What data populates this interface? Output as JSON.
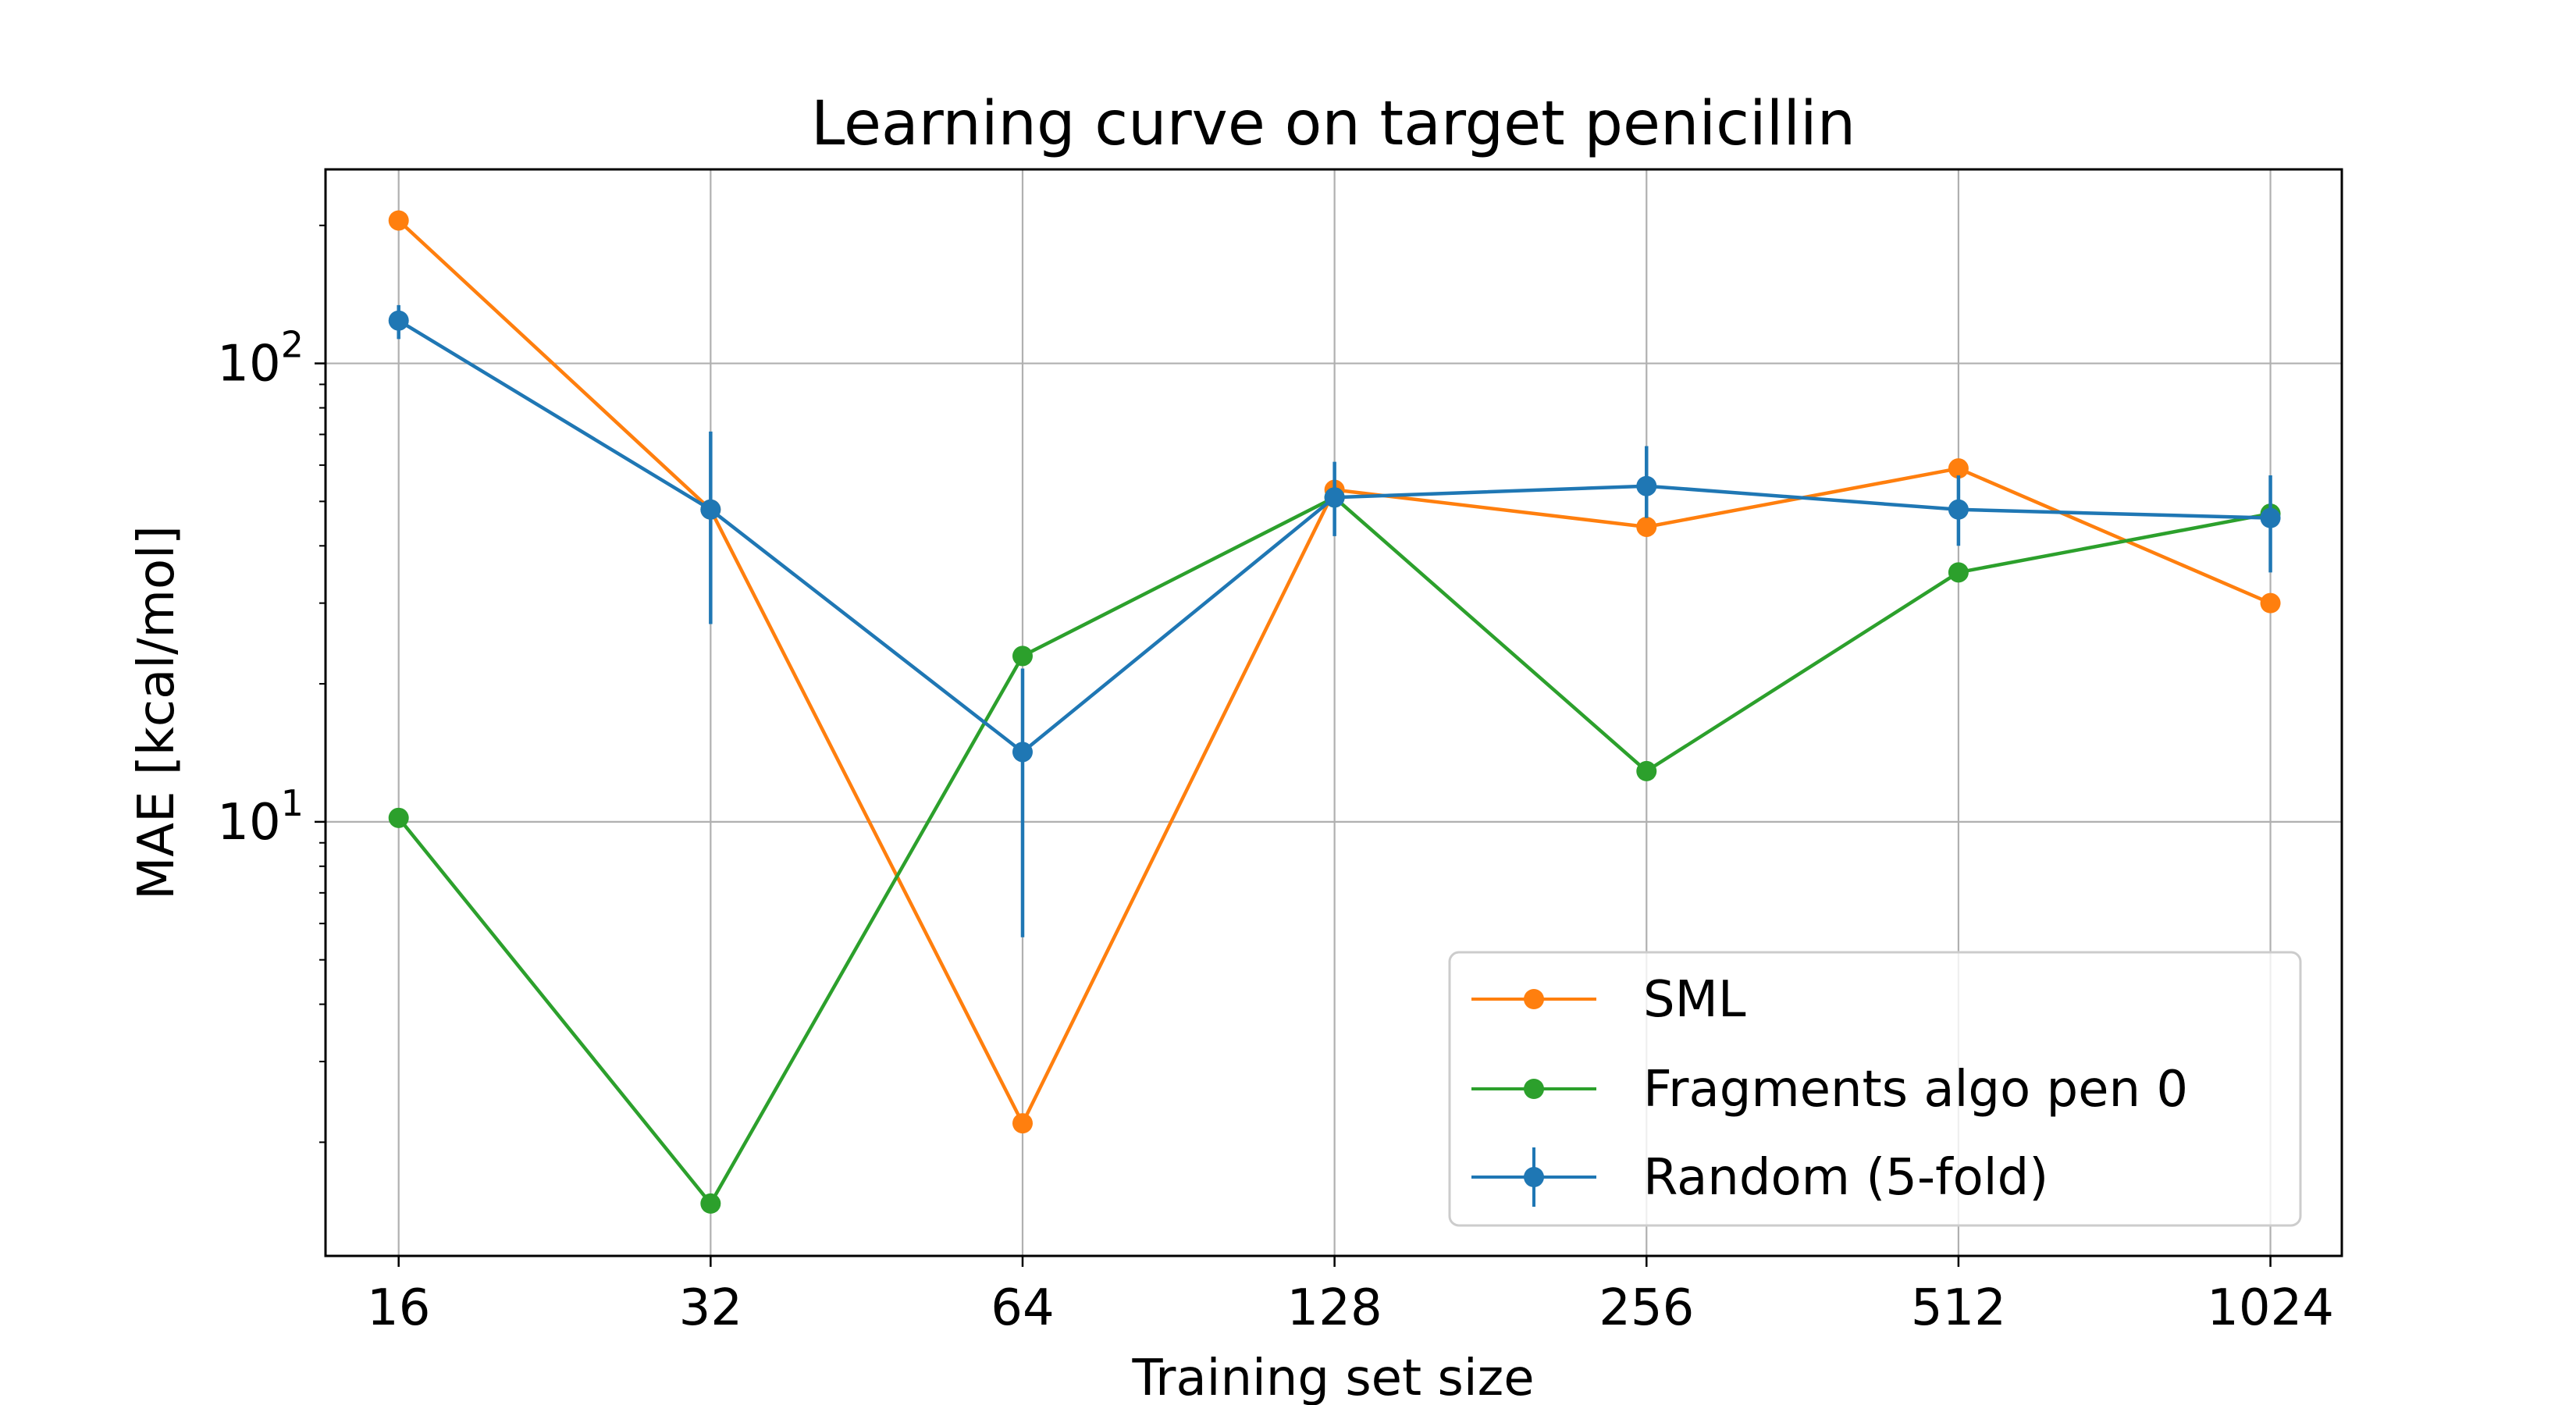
{
  "chart_data": {
    "type": "line",
    "title": "Learning curve on target penicillin",
    "xlabel": "Training set size",
    "ylabel": "MAE [kcal/mol]",
    "x_scale": "log2",
    "y_scale": "log10",
    "x": [
      16,
      32,
      64,
      128,
      256,
      512,
      1024
    ],
    "x_tick_labels": [
      "16",
      "32",
      "64",
      "128",
      "256",
      "512",
      "1024"
    ],
    "y_ticks": [
      {
        "value": 10,
        "base": "10",
        "exp": "1"
      },
      {
        "value": 100,
        "base": "10",
        "exp": "2"
      }
    ],
    "xlim": [
      13.6,
      1200
    ],
    "ylim": [
      1.13,
      265
    ],
    "grid": true,
    "legend_position": "lower right",
    "series": [
      {
        "name": "SML",
        "color": "#ff7f0e",
        "values": [
          205,
          48,
          2.2,
          53,
          44,
          59,
          30
        ]
      },
      {
        "name": "Fragments algo pen 0",
        "color": "#2ca02c",
        "values": [
          10.2,
          1.47,
          23,
          51,
          12.9,
          35,
          47
        ]
      },
      {
        "name": "Random (5-fold)",
        "color": "#1f77b4",
        "values": [
          124,
          48,
          14.2,
          51,
          54,
          48,
          46
        ],
        "error_bars": true,
        "yerr_low": [
          113,
          27,
          5.6,
          42,
          46,
          40,
          35
        ],
        "yerr_high": [
          134,
          71,
          21.6,
          61,
          66,
          57,
          57
        ]
      }
    ]
  }
}
